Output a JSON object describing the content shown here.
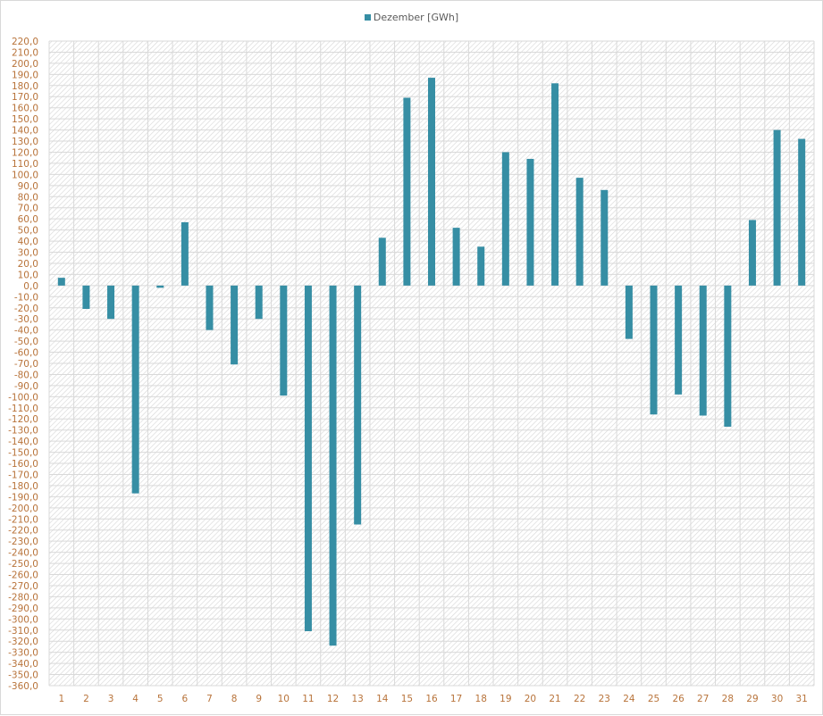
{
  "chart_data": {
    "type": "bar",
    "title": "",
    "xlabel": "",
    "ylabel": "",
    "legend": {
      "position": "top",
      "entries": [
        "Dezember [GWh]"
      ]
    },
    "categories": [
      "1",
      "2",
      "3",
      "4",
      "5",
      "6",
      "7",
      "8",
      "9",
      "10",
      "11",
      "12",
      "13",
      "14",
      "15",
      "16",
      "17",
      "18",
      "19",
      "20",
      "21",
      "22",
      "23",
      "24",
      "25",
      "26",
      "27",
      "28",
      "29",
      "30",
      "31"
    ],
    "series": [
      {
        "name": "Dezember [GWh]",
        "color": "#368ea4",
        "values": [
          7,
          -21,
          -30,
          -187,
          -2,
          57,
          -40,
          -71,
          -30,
          -99,
          -311,
          -324,
          -215,
          43,
          169,
          187,
          52,
          35,
          120,
          114,
          182,
          97,
          86,
          -48,
          -116,
          -98,
          -117,
          -127,
          59,
          140,
          132
        ]
      }
    ],
    "ylim": [
      -360,
      220
    ],
    "ytick_step": 10,
    "ytick_format": "one decimal, comma separator",
    "grid": true,
    "background": "diagonal hatch"
  }
}
